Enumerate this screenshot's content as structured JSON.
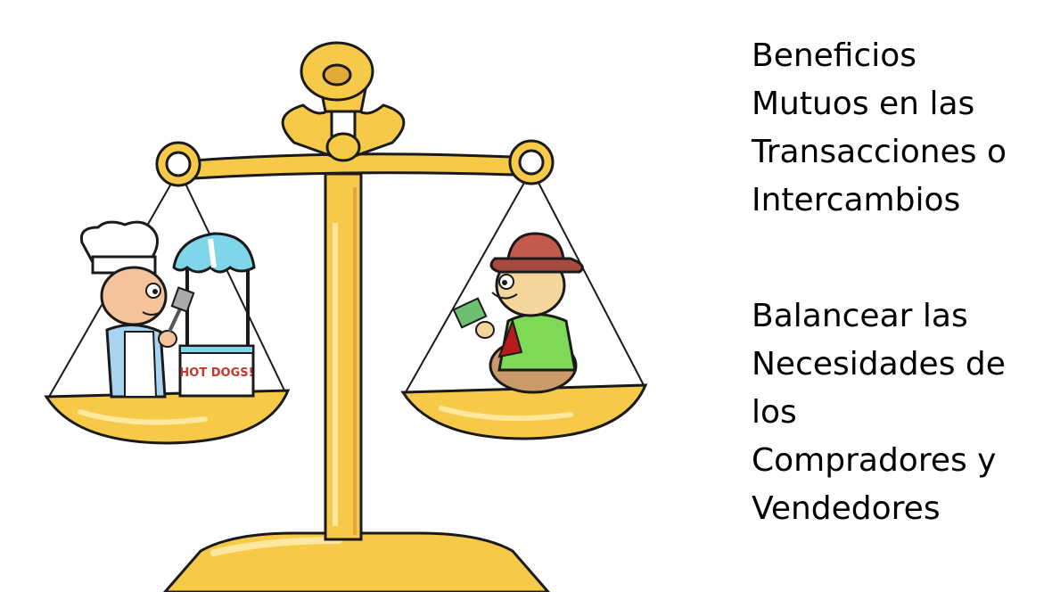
{
  "text_blocks": [
    {
      "lines": [
        "Beneficios",
        "Mutuos en las",
        "Transacciones o",
        "Intercambios"
      ]
    },
    {
      "lines": [
        "Balancear las",
        "Necesidades de",
        "los",
        "Compradores y",
        "Vendedores"
      ]
    }
  ],
  "illustration": {
    "stand_sign": "HOT DOGS!",
    "colors": {
      "gold": "#f7c948",
      "gold_light": "#ffe7a0",
      "gold_dark": "#e0a93a",
      "outline": "#1a1a1a"
    }
  }
}
